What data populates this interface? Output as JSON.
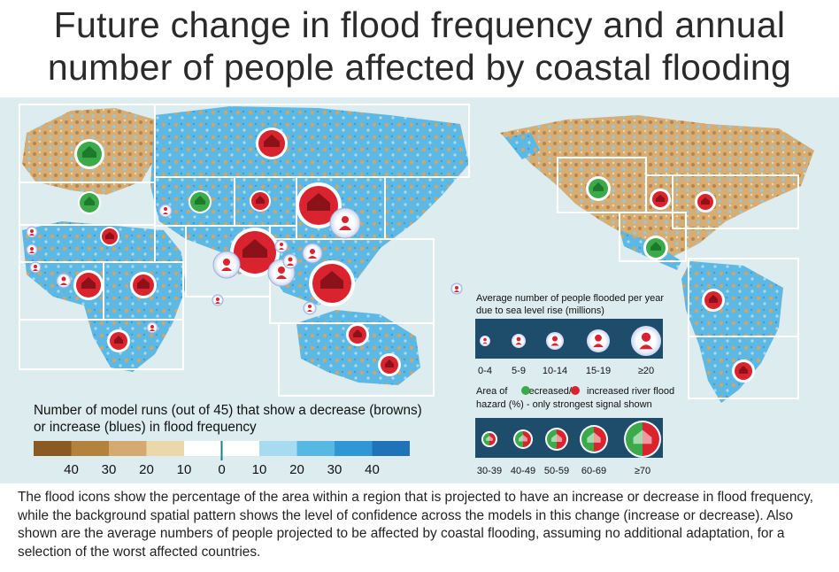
{
  "title": {
    "line1": "Future change in flood frequency and annual",
    "line2": "number of people affected by coastal flooding"
  },
  "frequency_scale": {
    "label_line1": "Number of model runs (out of 45) that show a decrease (browns)",
    "label_line2": "or increase (blues) in flood frequency",
    "colors": [
      "#8a5a22",
      "#b3823d",
      "#d4aa70",
      "#ead8aa",
      "#ffffff",
      "#ffffff",
      "#a7dcf0",
      "#57b8e3",
      "#2f97d3",
      "#1f74b8"
    ],
    "ticks": [
      "40",
      "30",
      "20",
      "10",
      "0",
      "10",
      "20",
      "30",
      "40"
    ]
  },
  "people_legend": {
    "title_line1": "Average number of people flooded per year",
    "title_line2": "due to sea level rise (millions)",
    "categories": [
      "0-4",
      "5-9",
      "10-14",
      "15-19",
      "≥20"
    ]
  },
  "hazard_legend": {
    "title_prefix": "Area of",
    "decreased_label": "decreased/",
    "increased_label": "increased river flood",
    "title_line2": "hazard (%) - only strongest signal shown",
    "categories": [
      "30-39",
      "40-49",
      "50-59",
      "60-69",
      "≥70"
    ],
    "decrease_color": "#3aaa4a",
    "increase_color": "#d9232e"
  },
  "caption": "The flood icons show the percentage of the area within a region that is projected to have an increase or decrease in flood frequency, while the background spatial pattern shows the level of confidence across the models in this change (increase or decrease). Also shown are the average numbers of people projected to be affected by coastal flooding, assuming no additional adaptation, for a selection of the worst affected countries.",
  "colors": {
    "ocean": "#dcecef",
    "land_blue": "#5db8e4",
    "land_brown": "#cfa56a",
    "legend_bg": "#1e4d6b",
    "increase": "#d9232e",
    "decrease": "#3aaa4a"
  }
}
